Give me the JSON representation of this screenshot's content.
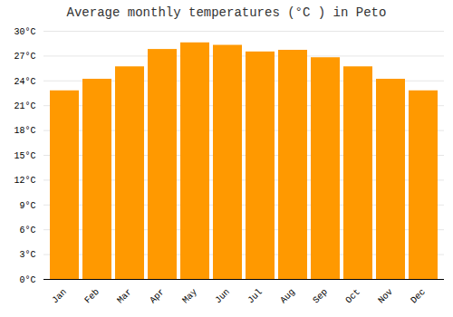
{
  "chart_data": {
    "type": "bar",
    "title": "Average monthly temperatures (°C ) in Peto",
    "categories": [
      "Jan",
      "Feb",
      "Mar",
      "Apr",
      "May",
      "Jun",
      "Jul",
      "Aug",
      "Sep",
      "Oct",
      "Nov",
      "Dec"
    ],
    "values": [
      22.8,
      24.2,
      25.7,
      27.8,
      28.6,
      28.3,
      27.5,
      27.7,
      26.8,
      25.7,
      24.2,
      22.8
    ],
    "color": "#FF9900",
    "ylim": [
      0,
      30
    ],
    "yticks": [
      {
        "value": 0,
        "label": "0°C"
      },
      {
        "value": 3,
        "label": "3°C"
      },
      {
        "value": 6,
        "label": "6°C"
      },
      {
        "value": 9,
        "label": "9°C"
      },
      {
        "value": 12,
        "label": "12°C"
      },
      {
        "value": 15,
        "label": "15°C"
      },
      {
        "value": 18,
        "label": "18°C"
      },
      {
        "value": 21,
        "label": "21°C"
      },
      {
        "value": 24,
        "label": "24°C"
      },
      {
        "value": 27,
        "label": "27°C"
      },
      {
        "value": 30,
        "label": "30°C"
      }
    ],
    "grid": true
  }
}
